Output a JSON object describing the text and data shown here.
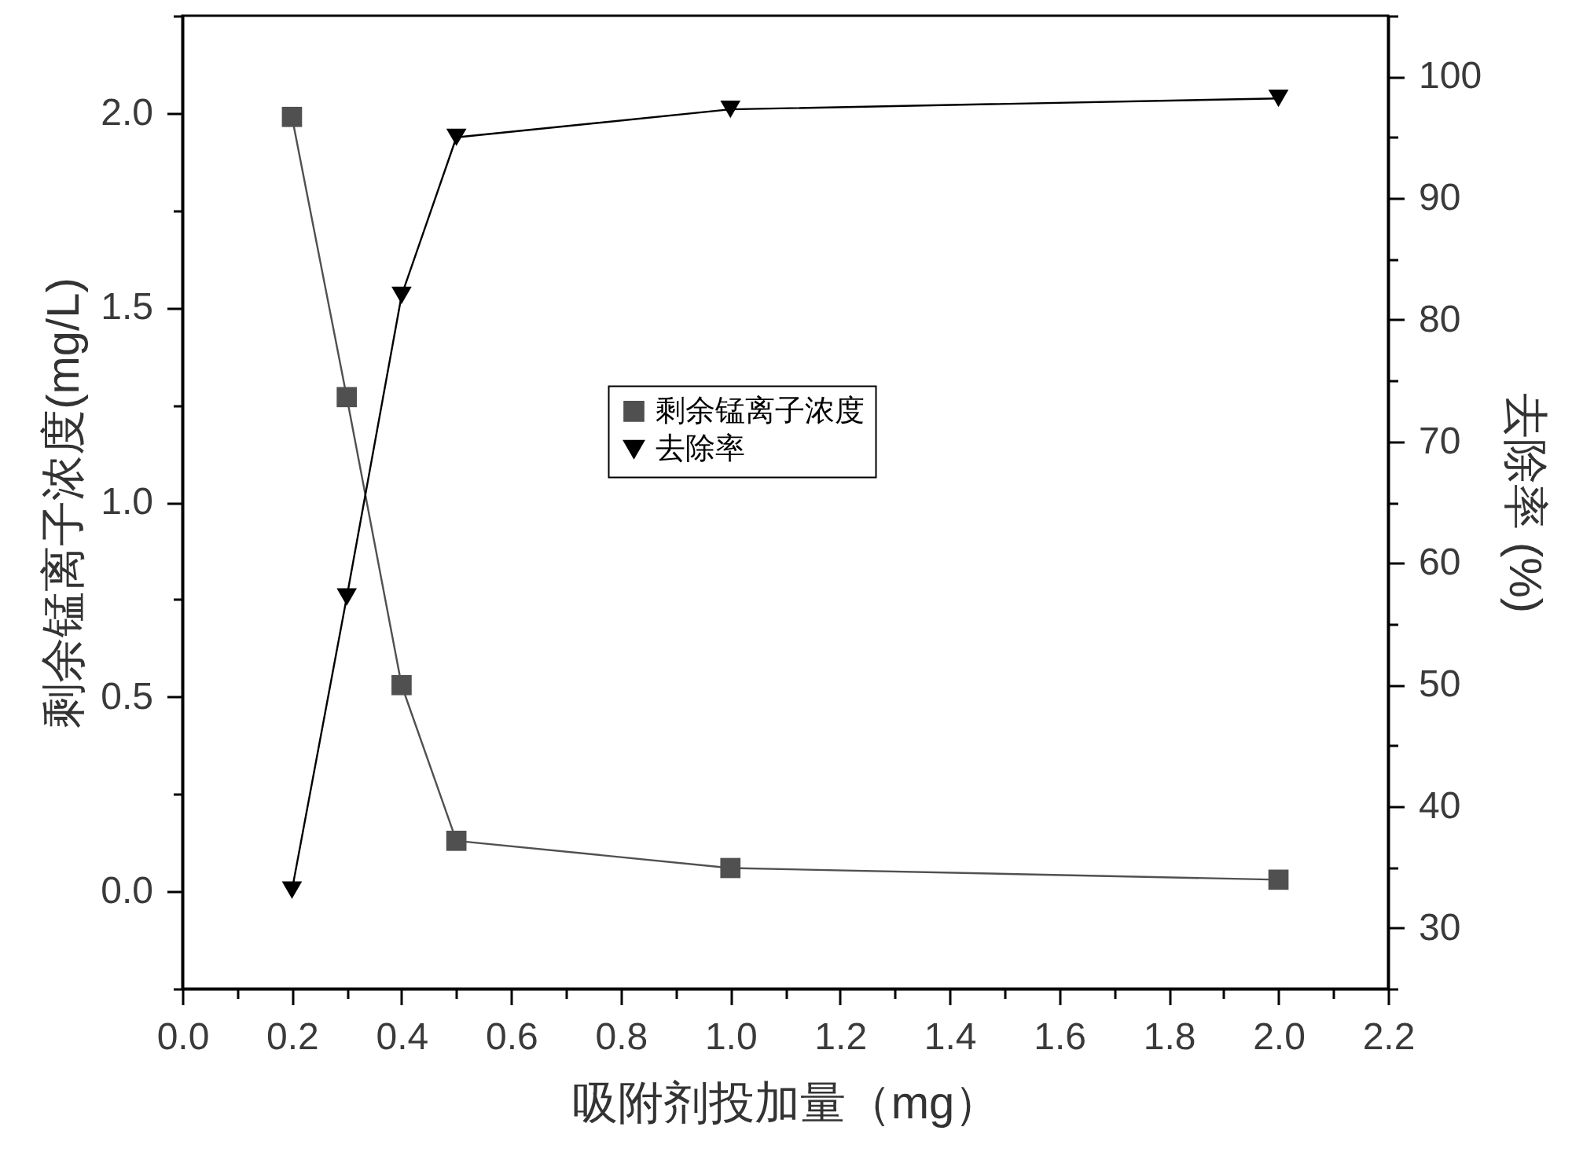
{
  "chart_data": {
    "type": "line",
    "xlabel": "吸附剂投加量（mg）",
    "ylabel": "剩余锰离子浓度(mg/L)",
    "y2label": "去除率 (%)",
    "legend": "center",
    "x": [
      0.2,
      0.3,
      0.4,
      0.5,
      1.0,
      2.0
    ],
    "series": [
      {
        "name": "剩余锰离子浓度",
        "color": "#505050",
        "marker": "square",
        "values": [
          1.99,
          1.27,
          0.53,
          0.13,
          0.06,
          0.03
        ]
      },
      {
        "name": "去除率",
        "color": "#000000",
        "marker": "triangle",
        "axis": "y2",
        "values": [
          33.1,
          57.2,
          82.0,
          95.0,
          97.3,
          98.2
        ]
      }
    ],
    "xlim": [
      0,
      2.2
    ],
    "xticks": [
      {
        "value": 0,
        "label": "0.0"
      },
      {
        "value": 0.1,
        "label": null
      },
      0.2,
      {
        "value": 0.3,
        "label": null
      },
      0.4,
      {
        "value": 0.5,
        "label": null
      },
      0.6,
      {
        "value": 0.7,
        "label": null
      },
      0.8,
      {
        "value": 0.9,
        "label": null
      },
      {
        "value": 1,
        "label": "1.0"
      },
      {
        "value": 1.1,
        "label": null
      },
      1.2,
      {
        "value": 1.3,
        "label": null
      },
      1.4,
      {
        "value": 1.5,
        "label": null
      },
      1.6,
      {
        "value": 1.7,
        "label": null
      },
      1.8,
      {
        "value": 1.9,
        "label": null
      },
      {
        "value": 2,
        "label": "2.0"
      },
      {
        "value": 2.1,
        "label": null
      },
      2.2
    ],
    "ylim": [
      -0.25,
      2.25
    ],
    "yticks": [
      {
        "value": -0.25,
        "label": null
      },
      {
        "value": 0,
        "label": "0.0"
      },
      {
        "value": 0.25,
        "label": null
      },
      0.5,
      {
        "value": 0.75,
        "label": null
      },
      {
        "value": 1,
        "label": "1.0"
      },
      {
        "value": 1.25,
        "label": null
      },
      1.5,
      {
        "value": 1.75,
        "label": null
      },
      {
        "value": 2,
        "label": "2.0"
      },
      {
        "value": 2.25,
        "label": null
      }
    ],
    "y2lim": [
      25,
      105
    ],
    "y2ticks": [
      {
        "value": 25,
        "label": null
      },
      30,
      {
        "value": 35,
        "label": null
      },
      40,
      {
        "value": 45,
        "label": null
      },
      50,
      {
        "value": 55,
        "label": null
      },
      60,
      {
        "value": 65,
        "label": null
      },
      70,
      {
        "value": 75,
        "label": null
      },
      80,
      {
        "value": 85,
        "label": null
      },
      90,
      {
        "value": 95,
        "label": null
      },
      100,
      {
        "value": 105,
        "label": null
      }
    ]
  }
}
